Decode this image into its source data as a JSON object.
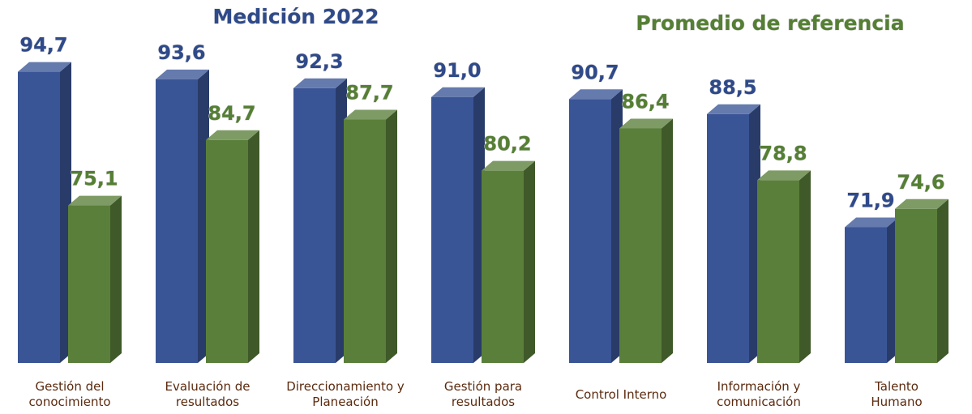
{
  "chart_data": {
    "type": "bar3d",
    "categories": [
      "Gestión del\nconocimiento",
      "Evaluación de\nresultados",
      "Direccionamiento y\nPlaneación",
      "Gestión para\nresultados",
      "Control Interno",
      "Información y\ncomunicación",
      "Talento\nHumano"
    ],
    "series": [
      {
        "name": "Medición 2022",
        "color": "#3a5596",
        "values": [
          94.7,
          93.6,
          92.3,
          91.0,
          90.7,
          88.5,
          71.9
        ],
        "value_labels": [
          "94,7",
          "93,6",
          "92,3",
          "91,0",
          "90,7",
          "88,5",
          "71,9"
        ]
      },
      {
        "name": "Promedio de referencia",
        "color": "#5a7f3a",
        "values": [
          75.1,
          84.7,
          87.7,
          80.2,
          86.4,
          78.8,
          74.6
        ],
        "value_labels": [
          "75,1",
          "84,7",
          "87,7",
          "80,2",
          "86,4",
          "78,8",
          "74,6"
        ]
      }
    ],
    "ylim": [
      52,
      100
    ]
  }
}
